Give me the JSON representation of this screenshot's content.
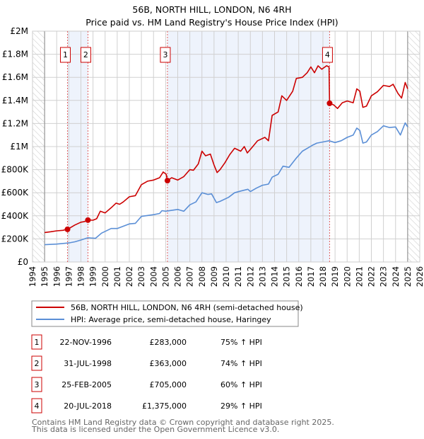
{
  "chart_data": {
    "type": "line",
    "title": "56B, NORTH HILL, LONDON, N6 4RH",
    "subtitle": "Price paid vs. HM Land Registry's House Price Index (HPI)",
    "xlim": [
      1994,
      2026
    ],
    "ylim": [
      0,
      2000000
    ],
    "x_ticks": [
      "1994",
      "1995",
      "1996",
      "1997",
      "1998",
      "1999",
      "2000",
      "2001",
      "2002",
      "2003",
      "2004",
      "2005",
      "2006",
      "2007",
      "2008",
      "2009",
      "2010",
      "2011",
      "2012",
      "2013",
      "2014",
      "2015",
      "2016",
      "2017",
      "2018",
      "2019",
      "2020",
      "2021",
      "2022",
      "2023",
      "2024",
      "2025",
      "2026"
    ],
    "y_ticks": [
      {
        "value": 0,
        "label": "£0"
      },
      {
        "value": 200000,
        "label": "£200K"
      },
      {
        "value": 400000,
        "label": "£400K"
      },
      {
        "value": 600000,
        "label": "£600K"
      },
      {
        "value": 800000,
        "label": "£800K"
      },
      {
        "value": 1000000,
        "label": "£1M"
      },
      {
        "value": 1200000,
        "label": "£1.2M"
      },
      {
        "value": 1400000,
        "label": "£1.4M"
      },
      {
        "value": 1600000,
        "label": "£1.6M"
      },
      {
        "value": 1800000,
        "label": "£1.8M"
      },
      {
        "value": 2000000,
        "label": "£2M"
      }
    ],
    "grid": true,
    "data_range": [
      1995,
      2025
    ],
    "colors": {
      "property": "#cc0000",
      "hpi": "#5b8fd6",
      "shade": "#eef3fc",
      "sale_line": "#e06060"
    },
    "shaded_periods": [
      [
        1996.89,
        1998.58
      ],
      [
        2005.15,
        2018.55
      ]
    ],
    "series": [
      {
        "name": "56B, NORTH HILL, LONDON, N6 4RH (semi-detached house)",
        "key": "property",
        "points": [
          [
            1995,
            255
          ],
          [
            1995.5,
            262
          ],
          [
            1996,
            270
          ],
          [
            1996.5,
            274
          ],
          [
            1996.89,
            283
          ],
          [
            1997.5,
            320
          ],
          [
            1998,
            345
          ],
          [
            1998.3,
            350
          ],
          [
            1998.58,
            363
          ],
          [
            1999,
            362
          ],
          [
            1999.3,
            375
          ],
          [
            1999.6,
            440
          ],
          [
            2000,
            425
          ],
          [
            2000.5,
            470
          ],
          [
            2000.9,
            510
          ],
          [
            2001.2,
            500
          ],
          [
            2001.5,
            520
          ],
          [
            2002,
            565
          ],
          [
            2002.5,
            575
          ],
          [
            2003,
            670
          ],
          [
            2003.5,
            700
          ],
          [
            2004,
            710
          ],
          [
            2004.5,
            730
          ],
          [
            2004.8,
            780
          ],
          [
            2005.05,
            760
          ],
          [
            2005.15,
            705
          ],
          [
            2005.5,
            730
          ],
          [
            2006,
            710
          ],
          [
            2006.5,
            740
          ],
          [
            2007,
            800
          ],
          [
            2007.3,
            795
          ],
          [
            2007.7,
            850
          ],
          [
            2008,
            960
          ],
          [
            2008.3,
            920
          ],
          [
            2008.7,
            935
          ],
          [
            2009,
            840
          ],
          [
            2009.25,
            775
          ],
          [
            2009.5,
            800
          ],
          [
            2009.9,
            860
          ],
          [
            2010.3,
            930
          ],
          [
            2010.7,
            985
          ],
          [
            2011.2,
            960
          ],
          [
            2011.5,
            1000
          ],
          [
            2011.75,
            945
          ],
          [
            2012.2,
            1000
          ],
          [
            2012.6,
            1050
          ],
          [
            2013.2,
            1080
          ],
          [
            2013.5,
            1050
          ],
          [
            2013.8,
            1270
          ],
          [
            2014.3,
            1300
          ],
          [
            2014.6,
            1440
          ],
          [
            2015,
            1400
          ],
          [
            2015.5,
            1480
          ],
          [
            2015.8,
            1590
          ],
          [
            2016.3,
            1600
          ],
          [
            2016.7,
            1640
          ],
          [
            2017,
            1690
          ],
          [
            2017.3,
            1640
          ],
          [
            2017.6,
            1700
          ],
          [
            2017.9,
            1670
          ],
          [
            2018.3,
            1700
          ],
          [
            2018.5,
            1690
          ],
          [
            2018.55,
            1375
          ],
          [
            2018.9,
            1360
          ],
          [
            2019.2,
            1330
          ],
          [
            2019.6,
            1380
          ],
          [
            2020,
            1395
          ],
          [
            2020.5,
            1380
          ],
          [
            2020.8,
            1500
          ],
          [
            2021.05,
            1480
          ],
          [
            2021.3,
            1340
          ],
          [
            2021.6,
            1350
          ],
          [
            2022,
            1440
          ],
          [
            2022.5,
            1475
          ],
          [
            2023,
            1530
          ],
          [
            2023.5,
            1520
          ],
          [
            2023.8,
            1540
          ],
          [
            2024.2,
            1460
          ],
          [
            2024.5,
            1420
          ],
          [
            2024.8,
            1555
          ],
          [
            2025,
            1500
          ]
        ]
      },
      {
        "name": "HPI: Average price, semi-detached house, Haringey",
        "key": "hpi",
        "points": [
          [
            1995,
            150
          ],
          [
            1996,
            155
          ],
          [
            1997,
            165
          ],
          [
            1997.5,
            175
          ],
          [
            1998,
            190
          ],
          [
            1998.58,
            210
          ],
          [
            1999.2,
            205
          ],
          [
            1999.7,
            250
          ],
          [
            2000.5,
            290
          ],
          [
            2001,
            290
          ],
          [
            2002,
            330
          ],
          [
            2002.5,
            335
          ],
          [
            2003,
            395
          ],
          [
            2004,
            410
          ],
          [
            2004.5,
            420
          ],
          [
            2004.7,
            445
          ],
          [
            2005,
            440
          ],
          [
            2006,
            455
          ],
          [
            2006.5,
            440
          ],
          [
            2007,
            495
          ],
          [
            2007.5,
            520
          ],
          [
            2008,
            600
          ],
          [
            2008.5,
            585
          ],
          [
            2008.8,
            590
          ],
          [
            2009.2,
            515
          ],
          [
            2009.5,
            525
          ],
          [
            2010.2,
            560
          ],
          [
            2010.7,
            600
          ],
          [
            2011.2,
            615
          ],
          [
            2011.8,
            630
          ],
          [
            2012,
            610
          ],
          [
            2012.5,
            640
          ],
          [
            2013,
            665
          ],
          [
            2013.5,
            675
          ],
          [
            2013.8,
            735
          ],
          [
            2014.3,
            760
          ],
          [
            2014.7,
            830
          ],
          [
            2015.2,
            820
          ],
          [
            2015.8,
            900
          ],
          [
            2016.3,
            960
          ],
          [
            2016.8,
            990
          ],
          [
            2017.1,
            1010
          ],
          [
            2017.5,
            1030
          ],
          [
            2018,
            1040
          ],
          [
            2018.5,
            1050
          ],
          [
            2019,
            1035
          ],
          [
            2019.5,
            1050
          ],
          [
            2020,
            1080
          ],
          [
            2020.5,
            1100
          ],
          [
            2020.8,
            1160
          ],
          [
            2021.05,
            1140
          ],
          [
            2021.3,
            1030
          ],
          [
            2021.6,
            1040
          ],
          [
            2022,
            1100
          ],
          [
            2022.5,
            1130
          ],
          [
            2023,
            1180
          ],
          [
            2023.5,
            1165
          ],
          [
            2024,
            1170
          ],
          [
            2024.4,
            1100
          ],
          [
            2024.8,
            1205
          ],
          [
            2025,
            1170
          ]
        ]
      }
    ],
    "value_unit": "thousand GBP",
    "sales": [
      {
        "num": "1",
        "x": 1996.89,
        "value": 283
      },
      {
        "num": "2",
        "x": 1998.58,
        "value": 363
      },
      {
        "num": "3",
        "x": 2005.15,
        "value": 705
      },
      {
        "num": "4",
        "x": 2018.55,
        "value": 1375
      }
    ]
  },
  "title": "56B, NORTH HILL, LONDON, N6 4RH",
  "subtitle": "Price paid vs. HM Land Registry's House Price Index (HPI)",
  "legend": [
    {
      "label": "56B, NORTH HILL, LONDON, N6 4RH (semi-detached house)",
      "color": "#cc0000"
    },
    {
      "label": "HPI: Average price, semi-detached house, Haringey",
      "color": "#5b8fd6"
    }
  ],
  "transactions": [
    {
      "num": "1",
      "date": "22-NOV-1996",
      "price": "£283,000",
      "hpi": "75% ↑ HPI"
    },
    {
      "num": "2",
      "date": "31-JUL-1998",
      "price": "£363,000",
      "hpi": "74% ↑ HPI"
    },
    {
      "num": "3",
      "date": "25-FEB-2005",
      "price": "£705,000",
      "hpi": "60% ↑ HPI"
    },
    {
      "num": "4",
      "date": "20-JUL-2018",
      "price": "£1,375,000",
      "hpi": "29% ↑ HPI"
    }
  ],
  "footer": {
    "line1": "Contains HM Land Registry data © Crown copyright and database right 2025.",
    "line2": "This data is licensed under the Open Government Licence v3.0."
  }
}
